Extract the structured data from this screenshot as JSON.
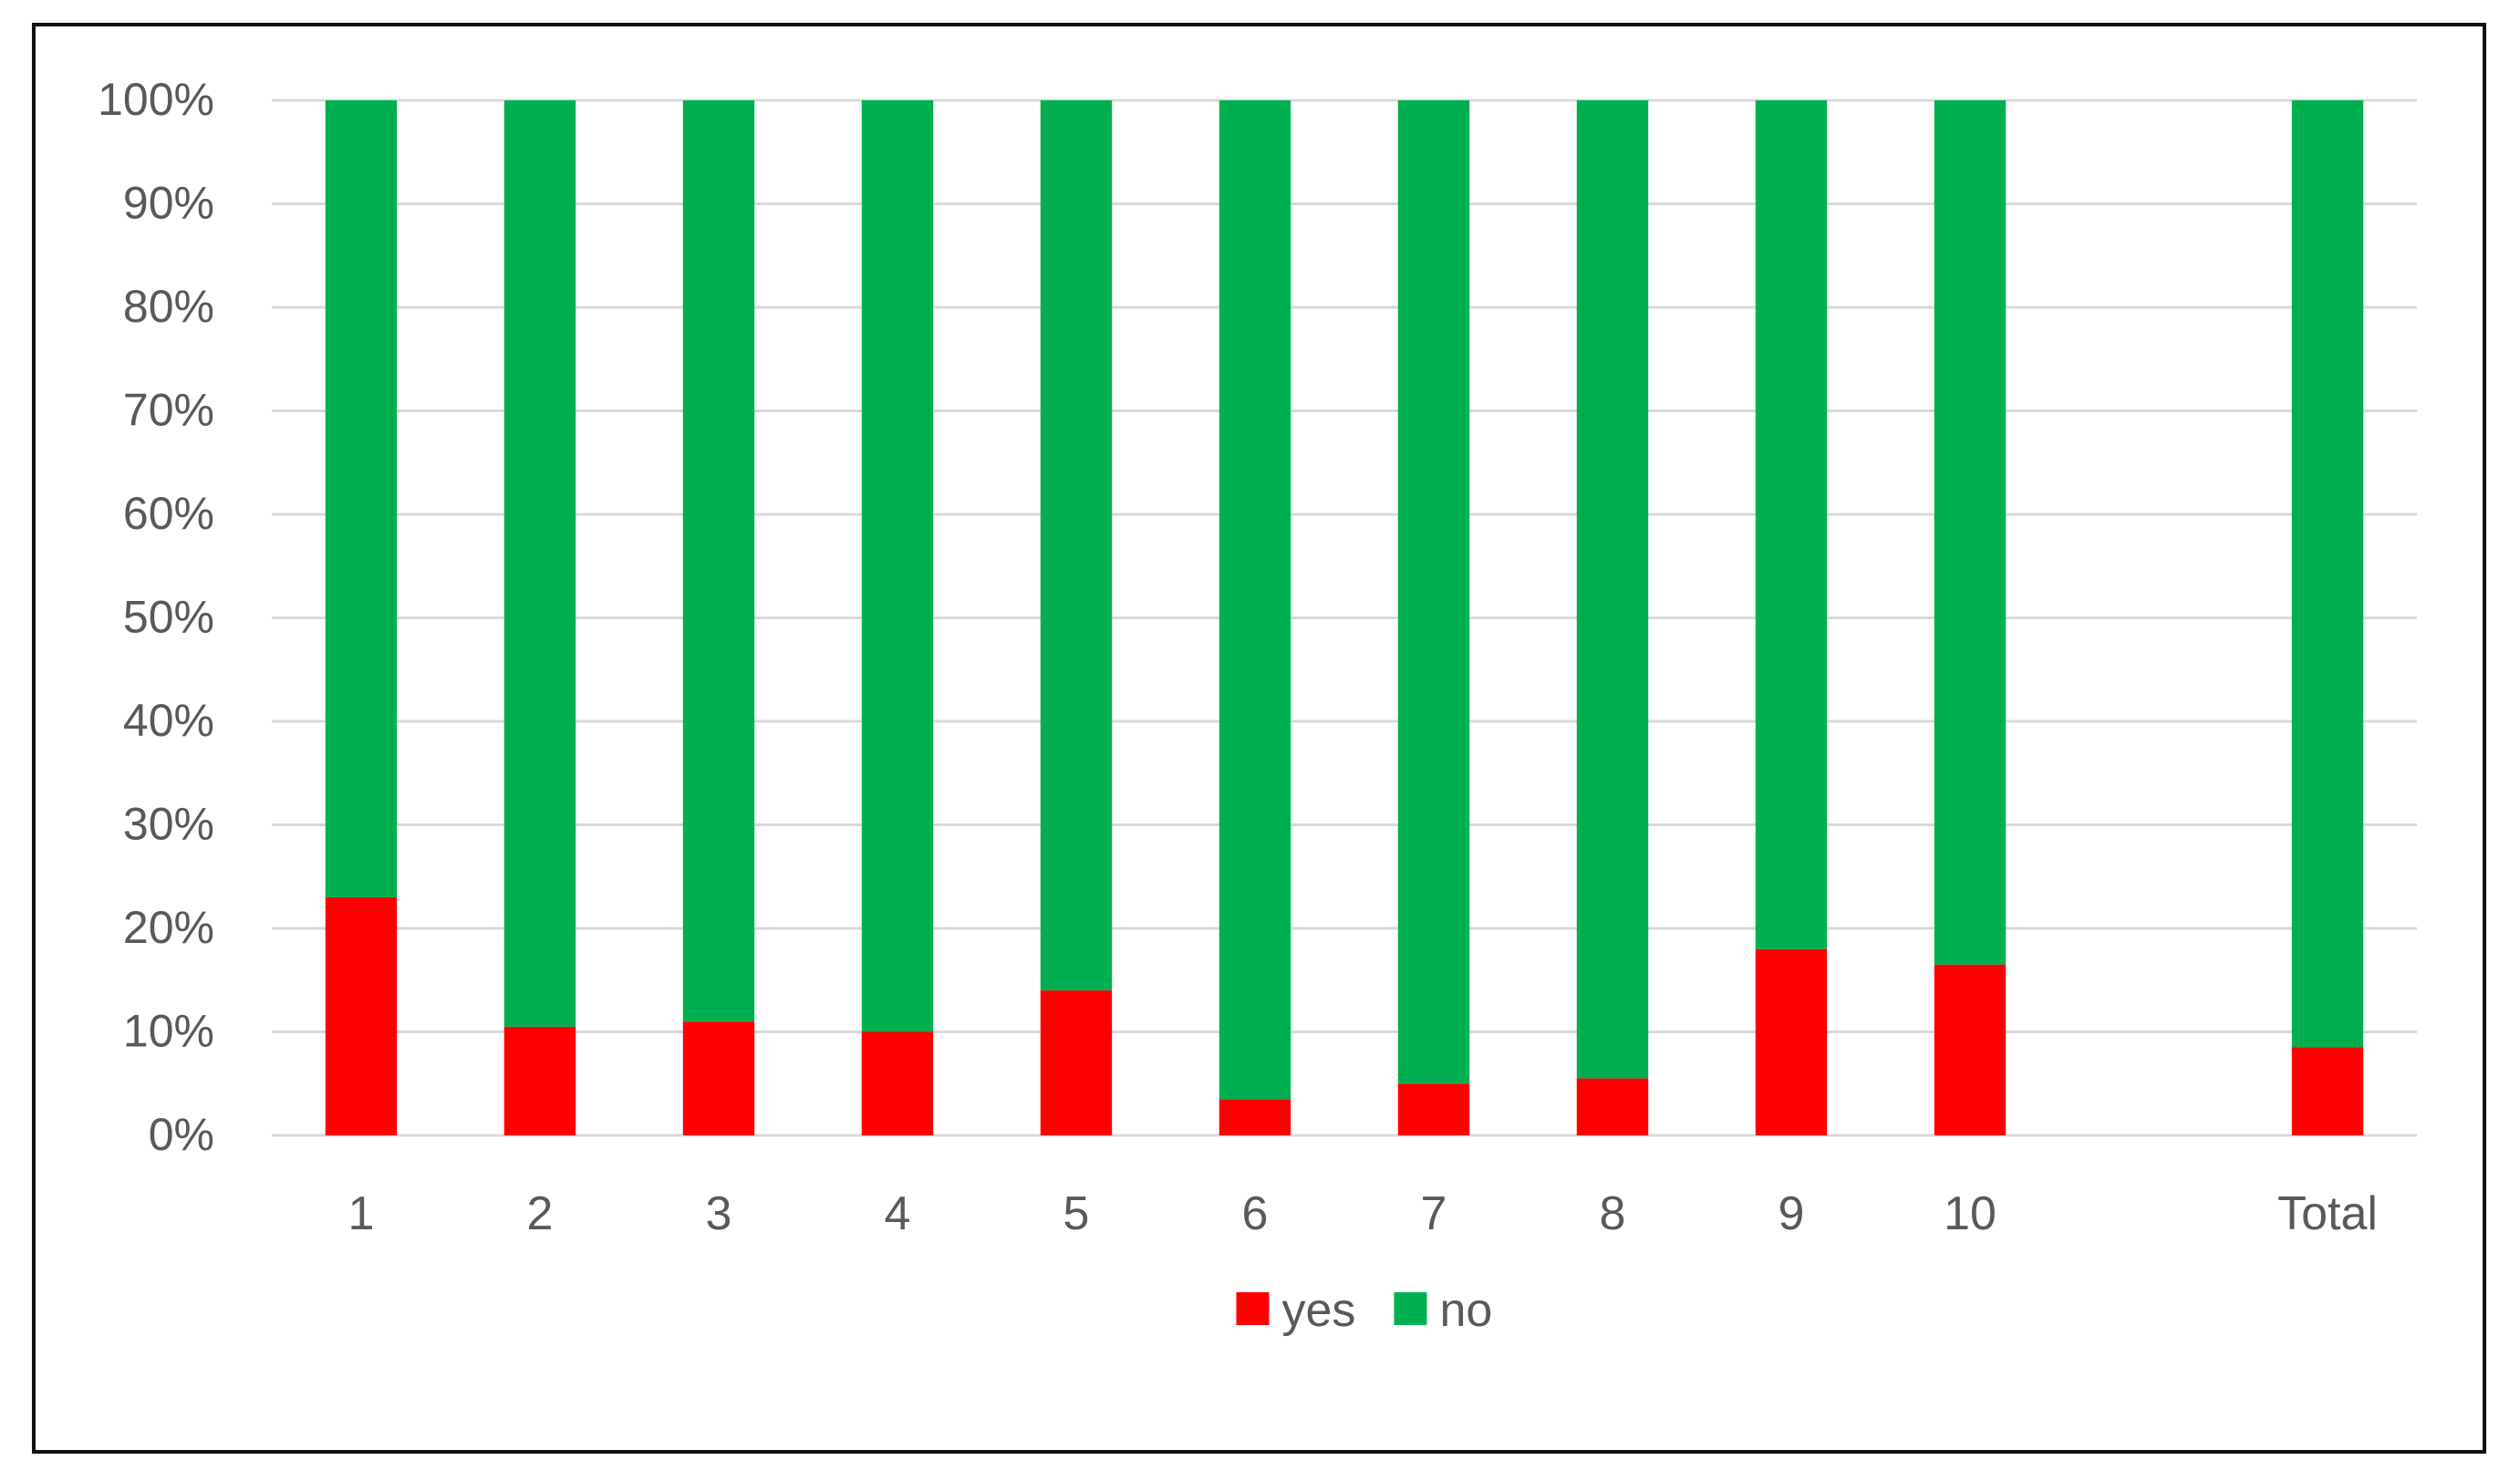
{
  "chart_data": {
    "type": "bar",
    "stacked": true,
    "categories": [
      "1",
      "2",
      "3",
      "4",
      "5",
      "6",
      "7",
      "8",
      "9",
      "10",
      "",
      "Total"
    ],
    "series": [
      {
        "name": "yes",
        "color": "#ff0000",
        "values": [
          23,
          10.5,
          11,
          10,
          14,
          3.5,
          5,
          5.5,
          18,
          16.5,
          null,
          8.5
        ]
      },
      {
        "name": "no",
        "color": "#00b050",
        "values": [
          77,
          89.5,
          89,
          90,
          86,
          96.5,
          95,
          94.5,
          82,
          83.5,
          null,
          91.5
        ]
      }
    ],
    "yticks": [
      "0%",
      "10%",
      "20%",
      "30%",
      "40%",
      "50%",
      "60%",
      "70%",
      "80%",
      "90%",
      "100%"
    ],
    "ylim": [
      0,
      100
    ],
    "grid": true,
    "legend_position": "bottom",
    "title": "",
    "xlabel": "",
    "ylabel": ""
  }
}
